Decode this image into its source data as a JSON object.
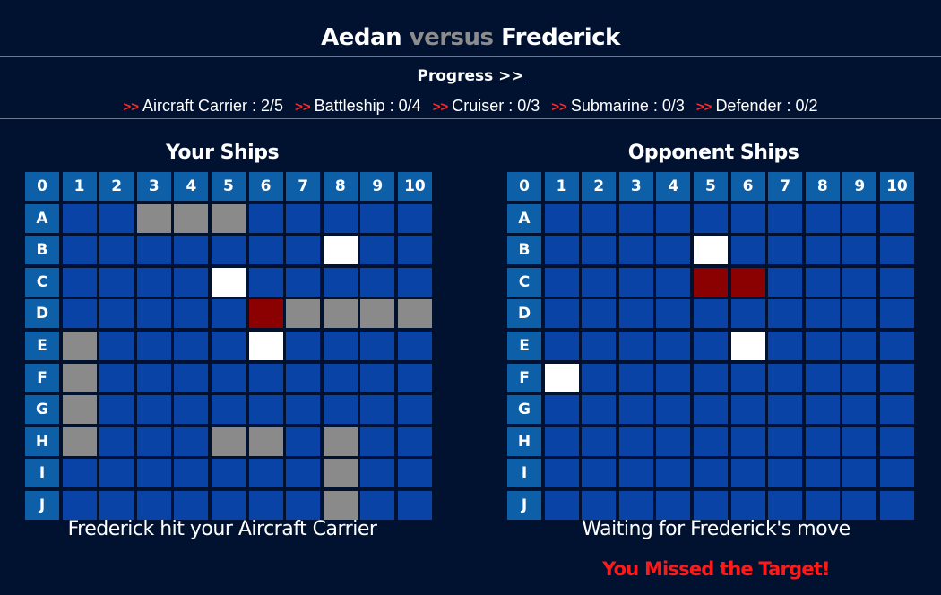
{
  "header": {
    "player": "Aedan",
    "versus": "versus",
    "opponent": "Frederick"
  },
  "progress": {
    "link_label": "Progress >>",
    "arrow": ">>",
    "items": [
      {
        "label": "Aircraft Carrier : 2/5"
      },
      {
        "label": "Battleship : 0/4"
      },
      {
        "label": "Cruiser : 0/3"
      },
      {
        "label": "Submarine : 0/3"
      },
      {
        "label": "Defender : 0/2"
      }
    ]
  },
  "colors": {
    "background": "#001230",
    "water": "#0a43a6",
    "header_cell": "#0d5fa8",
    "ship": "#8a8a8a",
    "miss": "#ffffff",
    "hit": "#8b0000",
    "alert": "#ff1a1a"
  },
  "board_labels": {
    "corner": "0",
    "columns": [
      "1",
      "2",
      "3",
      "4",
      "5",
      "6",
      "7",
      "8",
      "9",
      "10"
    ],
    "rows": [
      "A",
      "B",
      "C",
      "D",
      "E",
      "F",
      "G",
      "H",
      "I",
      "J"
    ]
  },
  "your_board": {
    "title": "Your Ships",
    "cells": [
      "..SSS.....",
      ".......M..",
      "....M.....",
      ".....HSSSS",
      "S....M....",
      "S.........",
      "S.........",
      "S...SS.S..",
      ".......S..",
      ".......S.."
    ],
    "status": "Frederick hit your Aircraft Carrier"
  },
  "opponent_board": {
    "title": "Opponent Ships",
    "cells": [
      "..........",
      "....M.....",
      "....HH....",
      "..........",
      ".....M....",
      "M.........",
      "..........",
      "..........",
      "..........",
      ".........."
    ],
    "status": "Waiting for Frederick's move",
    "alert": "You Missed the Target!"
  }
}
